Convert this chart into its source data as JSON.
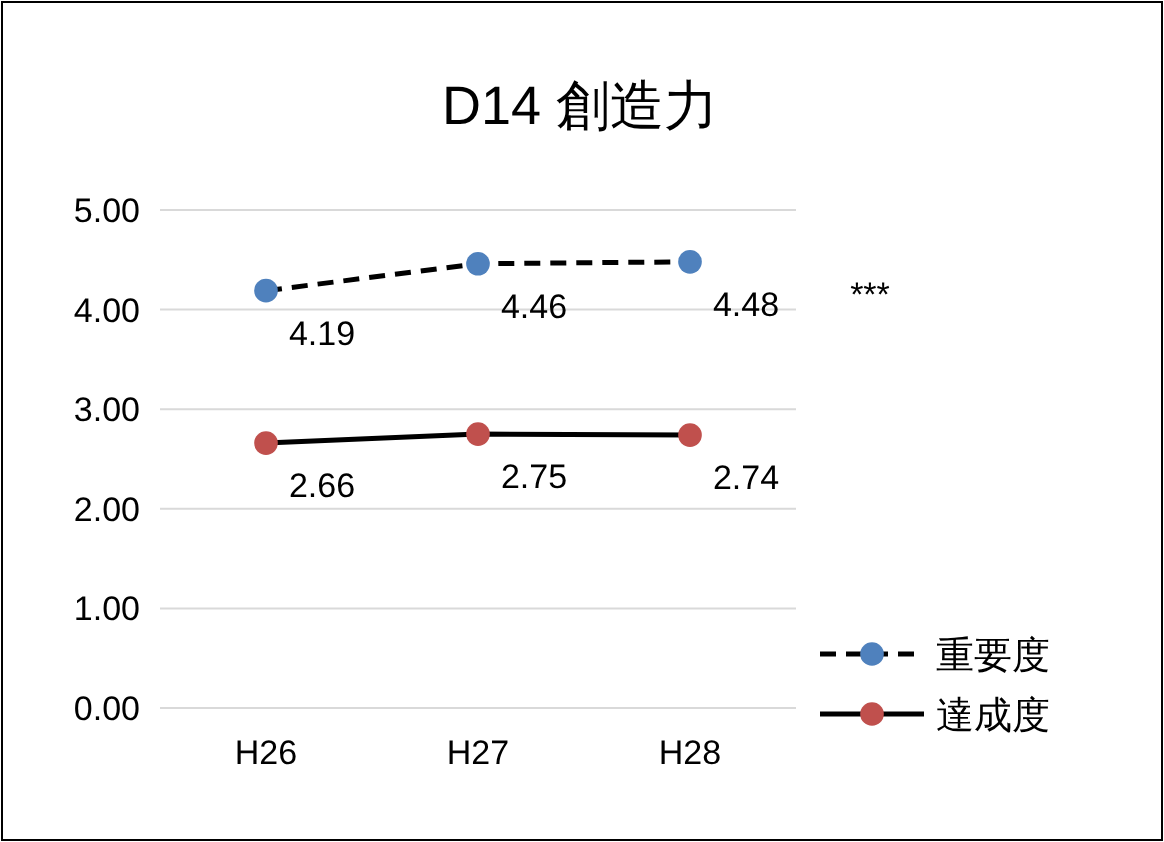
{
  "chart_data": {
    "type": "line",
    "title": "D14 創造力",
    "categories": [
      "H26",
      "H27",
      "H28"
    ],
    "series": [
      {
        "name": "重要度",
        "color": "#4f81bd",
        "values": [
          4.19,
          4.46,
          4.48
        ],
        "line_style": "dashed"
      },
      {
        "name": "達成度",
        "color": "#c0504d",
        "values": [
          2.66,
          2.75,
          2.74
        ],
        "line_style": "solid"
      }
    ],
    "ylim": [
      0,
      5
    ],
    "yticks": [
      {
        "value": 0,
        "label": "0.00"
      },
      {
        "value": 1,
        "label": "1.00"
      },
      {
        "value": 2,
        "label": "2.00"
      },
      {
        "value": 3,
        "label": "3.00"
      },
      {
        "value": 4,
        "label": "4.00"
      },
      {
        "value": 5,
        "label": "5.00"
      }
    ],
    "grid": "y",
    "marker": "circle",
    "data_labels": true,
    "legend": "bottom right",
    "annotations": [
      "***"
    ]
  }
}
